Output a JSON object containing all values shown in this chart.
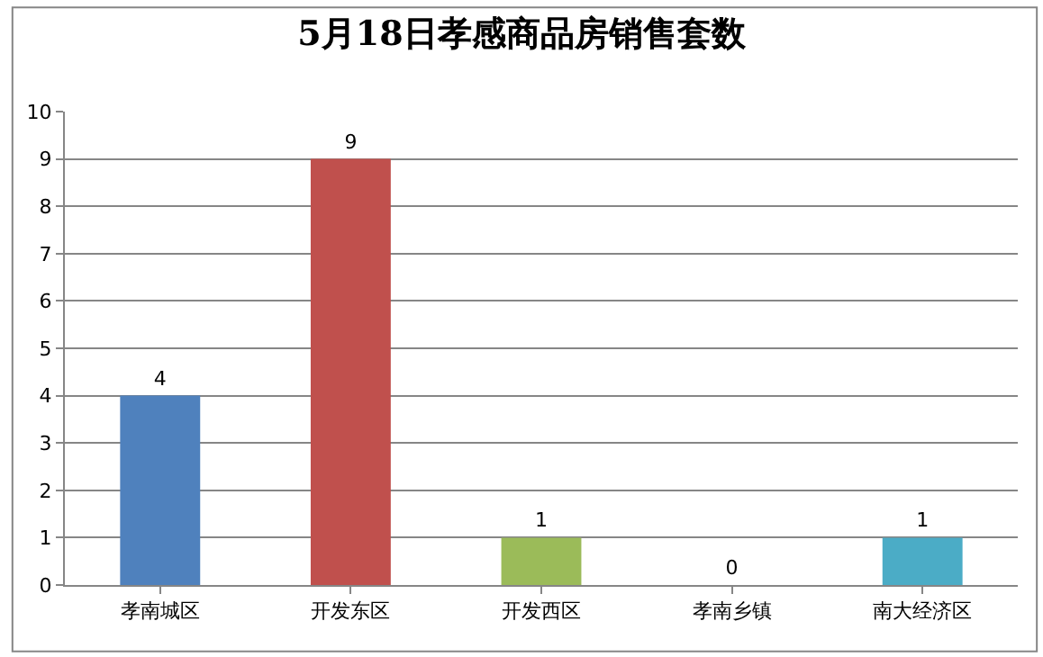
{
  "chart_data": {
    "type": "bar",
    "title": "5月18日孝感商品房销售套数",
    "categories": [
      "孝南城区",
      "开发东区",
      "开发西区",
      "孝南乡镇",
      "南大经济区"
    ],
    "values": [
      4,
      9,
      1,
      0,
      1
    ],
    "colors": [
      "#4f81bd",
      "#c0504d",
      "#9bbb59",
      null,
      "#4bacc6"
    ],
    "ylim": [
      0,
      10
    ],
    "yticks": [
      0,
      1,
      2,
      3,
      4,
      5,
      6,
      7,
      8,
      9,
      10
    ],
    "grid": "y",
    "data_labels": true,
    "legend": false
  }
}
